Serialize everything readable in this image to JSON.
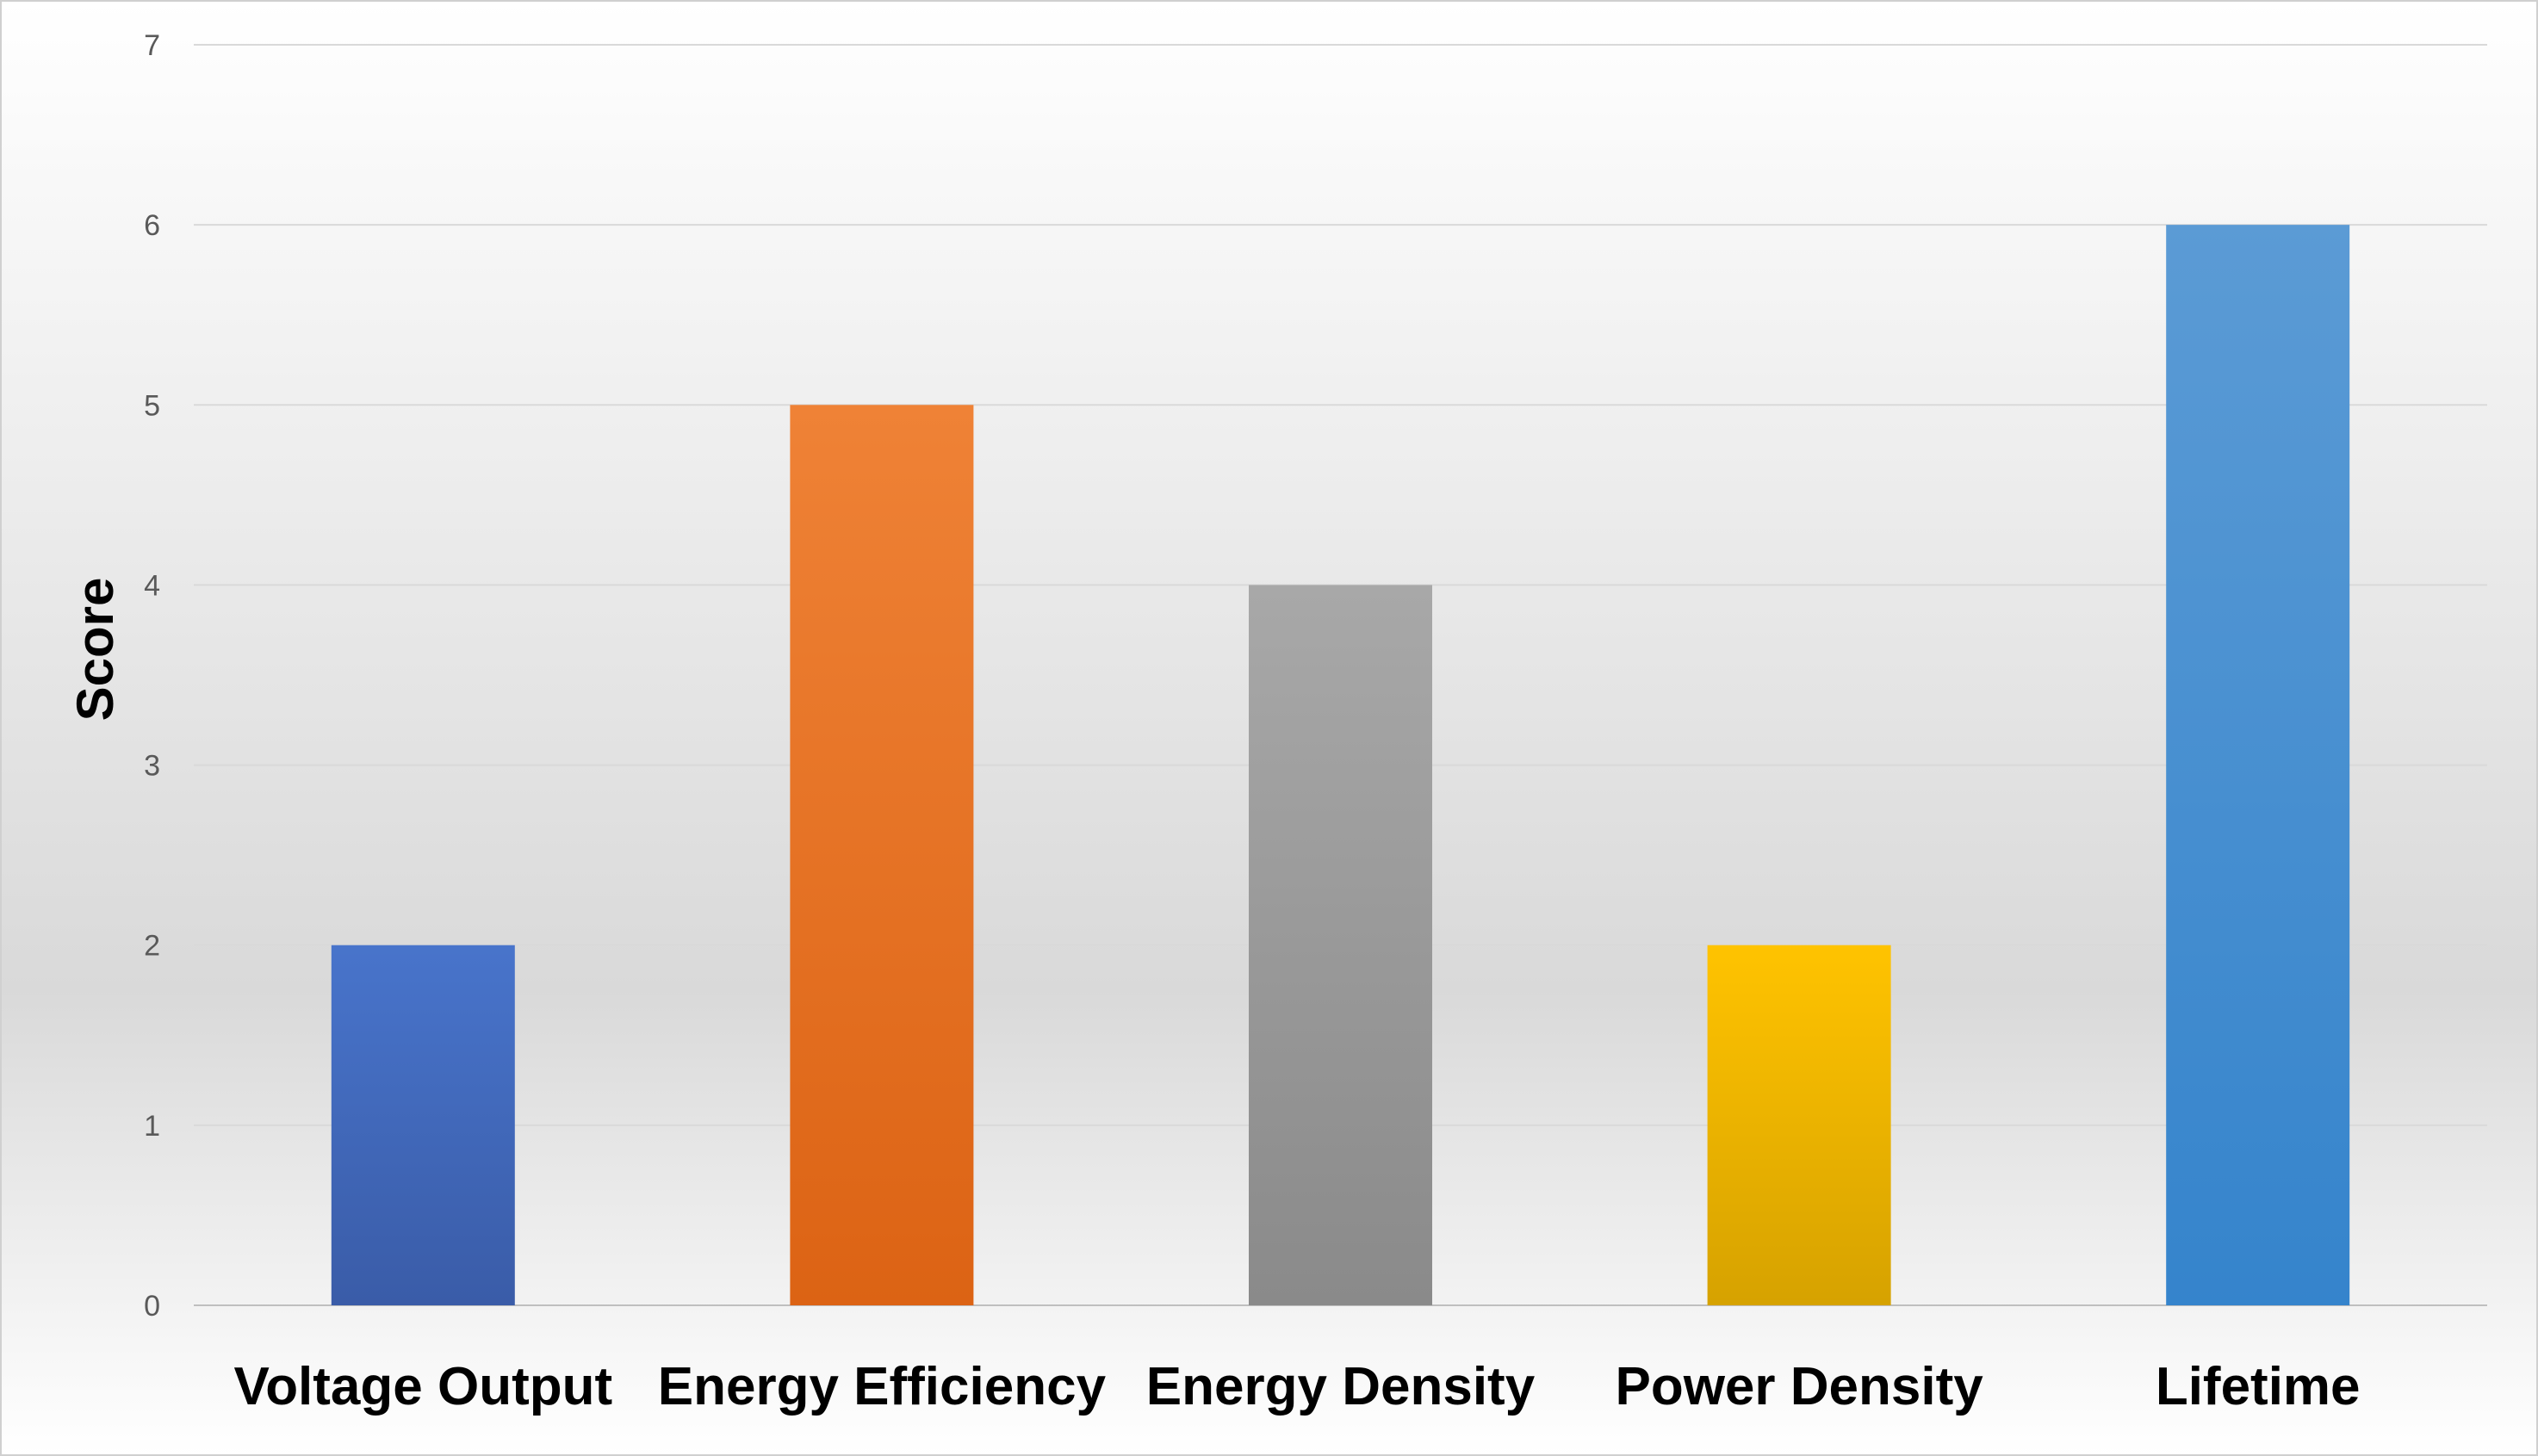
{
  "chart_data": {
    "type": "bar",
    "categories": [
      "Voltage Output",
      "Energy Efficiency",
      "Energy Density",
      "Power Density",
      "Lifetime"
    ],
    "values": [
      2,
      5,
      4,
      2,
      6
    ],
    "title": "",
    "xlabel": "",
    "ylabel": "Score",
    "ylim": [
      0,
      7
    ],
    "yticks": [
      0,
      1,
      2,
      3,
      4,
      5,
      6,
      7
    ],
    "grid": true,
    "legend": "none",
    "colors": [
      {
        "top": "#4874cb",
        "bottom": "#3a5ca8"
      },
      {
        "top": "#ef8236",
        "bottom": "#dc6314"
      },
      {
        "top": "#a8a8a8",
        "bottom": "#8a8a8a"
      },
      {
        "top": "#ffc300",
        "bottom": "#d6a200"
      },
      {
        "top": "#5b9bd5",
        "bottom": "#3584cc"
      }
    ],
    "background": {
      "top": "#ffffff",
      "middle": "#d9d9d9",
      "bottom": "#ffffff"
    },
    "border_color": "#d0d0d0"
  }
}
